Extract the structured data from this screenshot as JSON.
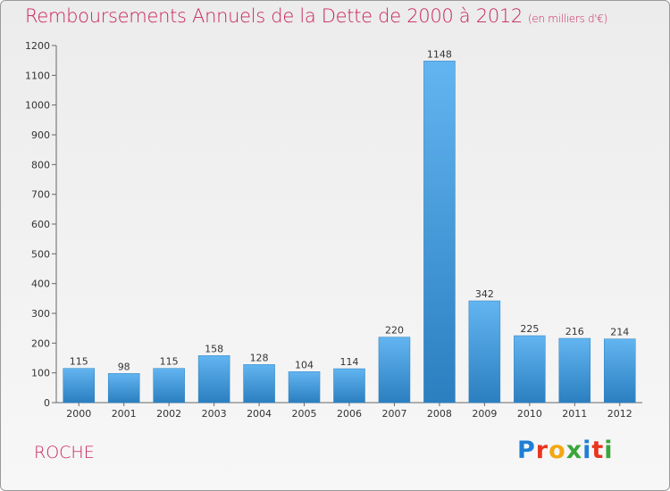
{
  "header": {
    "title": "Remboursements Annuels de la Dette de 2000 à 2012",
    "unit": "(en milliers d'€)"
  },
  "footer": {
    "commune": "ROCHE",
    "logo_letters": [
      "P",
      "r",
      "o",
      "x",
      "i",
      "t",
      "i"
    ],
    "logo_colors": [
      "#1f7fd6",
      "#e8351f",
      "#f3a712",
      "#3aa639",
      "#1f7fd6",
      "#e8351f",
      "#3aa639"
    ]
  },
  "chart_data": {
    "type": "bar",
    "title": "Remboursements Annuels de la Dette de 2000 à 2012",
    "categories": [
      "2000",
      "2001",
      "2002",
      "2003",
      "2004",
      "2005",
      "2006",
      "2007",
      "2008",
      "2009",
      "2010",
      "2011",
      "2012"
    ],
    "values": [
      115,
      98,
      115,
      158,
      128,
      104,
      114,
      220,
      1148,
      342,
      225,
      216,
      214
    ],
    "xlabel": "",
    "ylabel": "",
    "ylim": [
      0,
      1200
    ],
    "yticks": [
      0,
      100,
      200,
      300,
      400,
      500,
      600,
      700,
      800,
      900,
      1000,
      1100,
      1200
    ],
    "grid": false,
    "bar_color": "#3a9ee4",
    "data_labels": true
  }
}
